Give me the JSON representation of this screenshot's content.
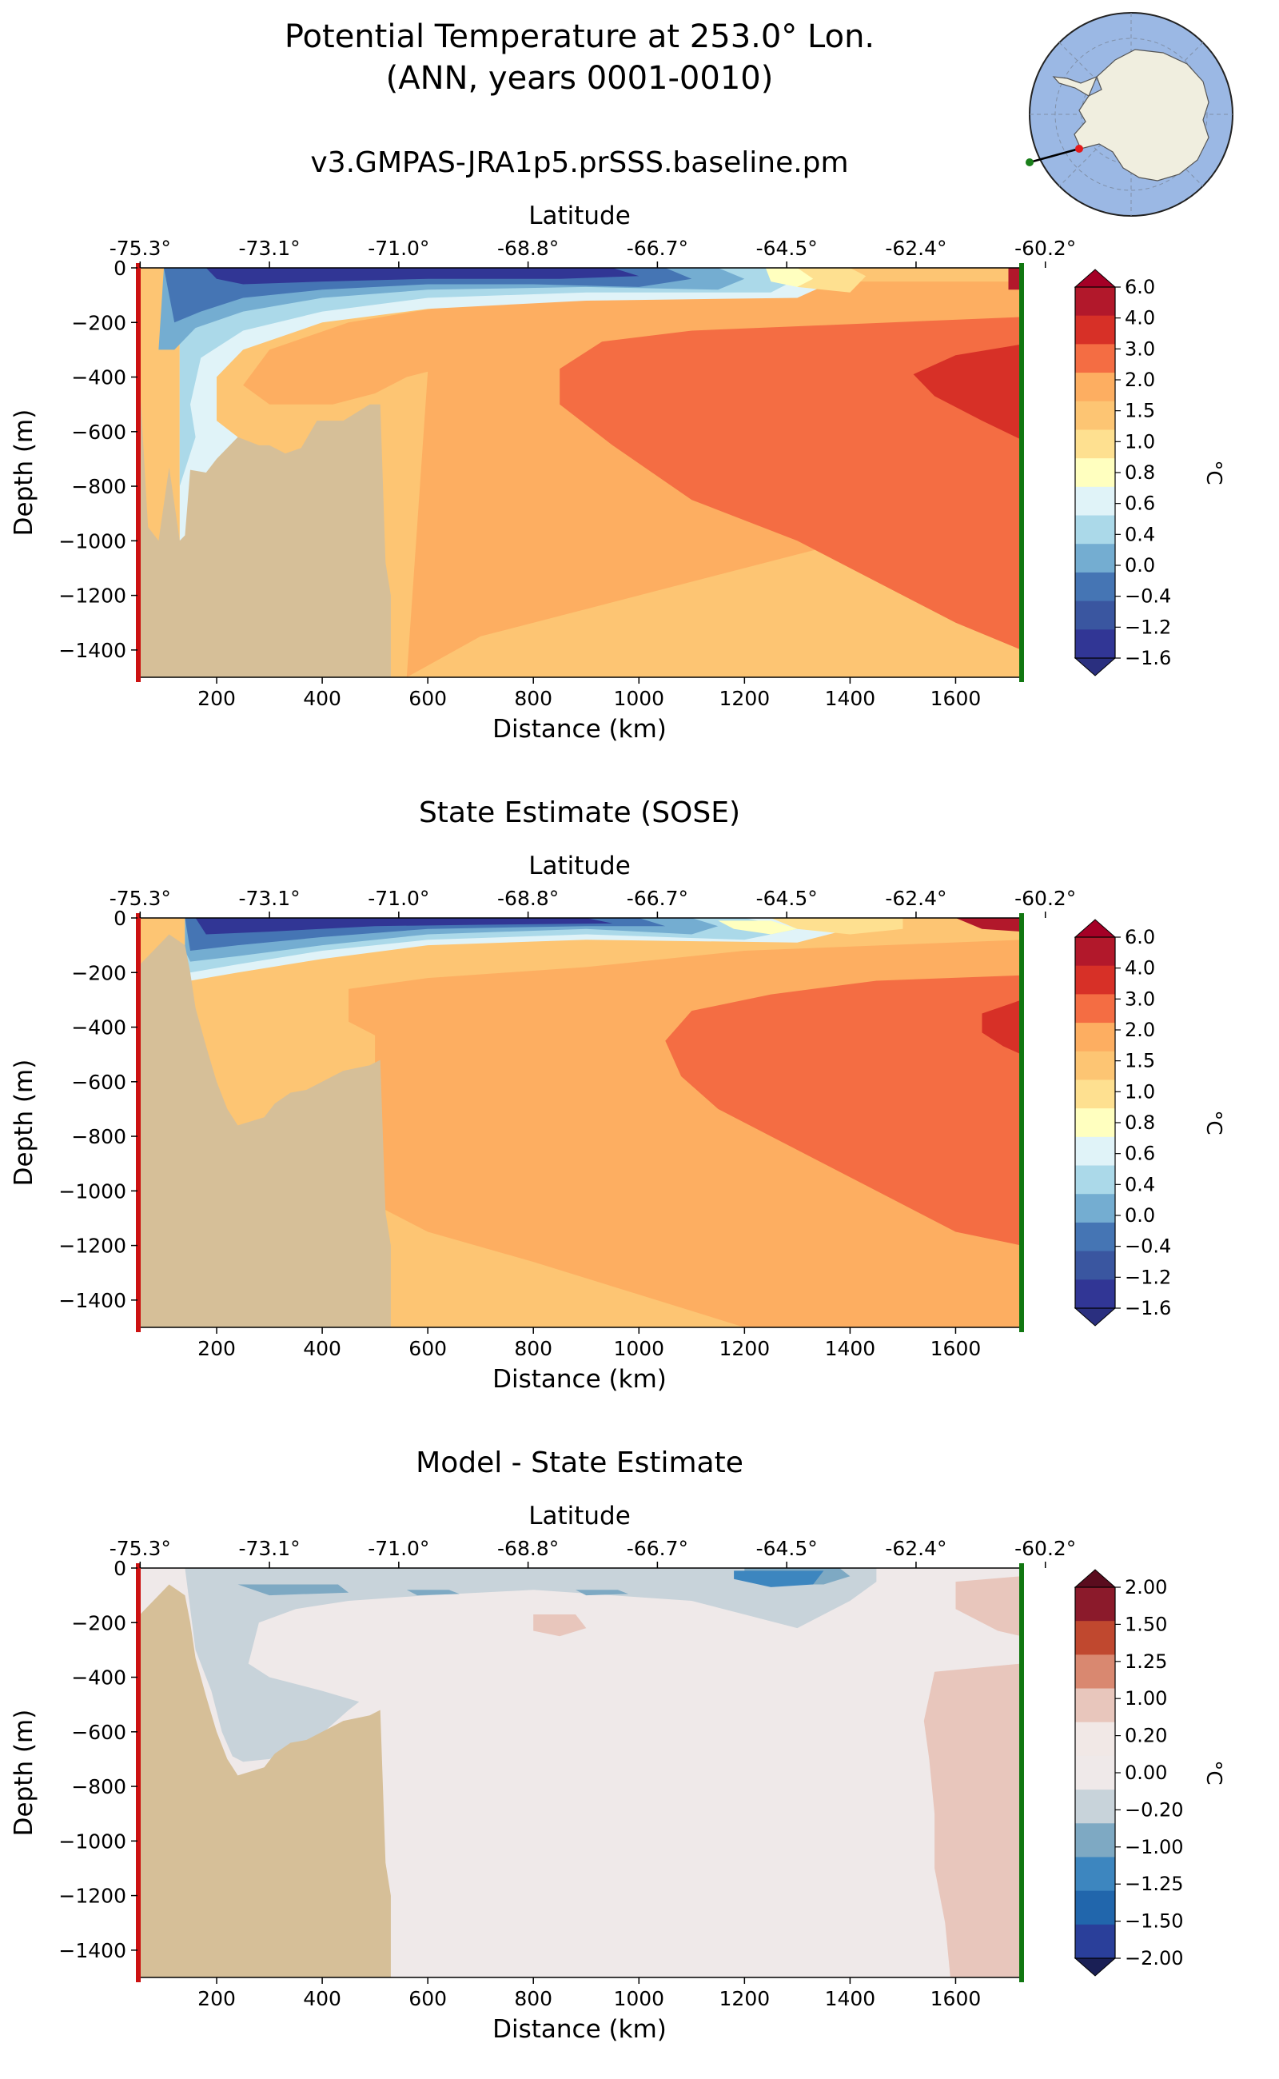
{
  "figure": {
    "title_line1": "Potential Temperature at 253.0° Lon.",
    "title_line2": "(ANN, years 0001-0010)"
  },
  "inset_map": {
    "description": "South polar stereographic map of Antarctica with section line",
    "section_start_color": "#1a7f1a",
    "section_end_color": "#e41a1c",
    "ocean_color": "#9bb8e4",
    "land_color": "#f0eedf"
  },
  "panel_colors": {
    "land": "#d6bf98",
    "left_edge": "#cc1111",
    "right_edge": "#117711"
  },
  "chart_data": [
    {
      "type": "contour",
      "title": "v3.GMPAS-JRA1p5.prSSS.baseline.pm",
      "xlabel": "Distance (km)",
      "ylabel": "Depth (m)",
      "top_axis_label": "Latitude",
      "xlim": [
        50,
        1725
      ],
      "ylim": [
        -1500,
        0
      ],
      "x_ticks": [
        200,
        400,
        600,
        800,
        1000,
        1200,
        1400,
        1600
      ],
      "x_tick_labels": [
        "200",
        "400",
        "600",
        "800",
        "1000",
        "1200",
        "1400",
        "1600"
      ],
      "y_ticks": [
        0,
        -200,
        -400,
        -600,
        -800,
        -1000,
        -1200,
        -1400
      ],
      "y_tick_labels": [
        "0",
        "−200",
        "−400",
        "−600",
        "−800",
        "−1000",
        "−1200",
        "−1400"
      ],
      "lat_ticks_km": [
        55,
        300,
        545,
        790,
        1035,
        1280,
        1525,
        1770
      ],
      "lat_tick_labels": [
        "-75.3°",
        "-73.1°",
        "-71.0°",
        "-68.8°",
        "-66.7°",
        "-64.5°",
        "-62.4°",
        "-60.2°"
      ],
      "colorbar": {
        "label": "°C",
        "levels": [
          "6.0",
          "4.0",
          "3.0",
          "2.0",
          "1.5",
          "1.0",
          "0.8",
          "0.6",
          "0.4",
          "0.0",
          "−0.4",
          "−1.2",
          "−1.6"
        ],
        "colors": [
          "#b2182b",
          "#d73027",
          "#f46d43",
          "#fdae61",
          "#fdc573",
          "#fee090",
          "#ffffbf",
          "#e0f3f8",
          "#abd9e9",
          "#74add1",
          "#4575b4",
          "#3a56a0",
          "#313695"
        ],
        "extend_over": "#a50026",
        "extend_under": "#2a2f7f"
      }
    },
    {
      "type": "contour",
      "title": "State Estimate (SOSE)",
      "xlabel": "Distance (km)",
      "ylabel": "Depth (m)",
      "top_axis_label": "Latitude",
      "xlim": [
        50,
        1725
      ],
      "ylim": [
        -1500,
        0
      ],
      "x_ticks": [
        200,
        400,
        600,
        800,
        1000,
        1200,
        1400,
        1600
      ],
      "x_tick_labels": [
        "200",
        "400",
        "600",
        "800",
        "1000",
        "1200",
        "1400",
        "1600"
      ],
      "y_ticks": [
        0,
        -200,
        -400,
        -600,
        -800,
        -1000,
        -1200,
        -1400
      ],
      "y_tick_labels": [
        "0",
        "−200",
        "−400",
        "−600",
        "−800",
        "−1000",
        "−1200",
        "−1400"
      ],
      "lat_ticks_km": [
        55,
        300,
        545,
        790,
        1035,
        1280,
        1525,
        1770
      ],
      "lat_tick_labels": [
        "-75.3°",
        "-73.1°",
        "-71.0°",
        "-68.8°",
        "-66.7°",
        "-64.5°",
        "-62.4°",
        "-60.2°"
      ],
      "colorbar": {
        "label": "°C",
        "levels": [
          "6.0",
          "4.0",
          "3.0",
          "2.0",
          "1.5",
          "1.0",
          "0.8",
          "0.6",
          "0.4",
          "0.0",
          "−0.4",
          "−1.2",
          "−1.6"
        ],
        "colors": [
          "#b2182b",
          "#d73027",
          "#f46d43",
          "#fdae61",
          "#fdc573",
          "#fee090",
          "#ffffbf",
          "#e0f3f8",
          "#abd9e9",
          "#74add1",
          "#4575b4",
          "#3a56a0",
          "#313695"
        ],
        "extend_over": "#a50026",
        "extend_under": "#2a2f7f"
      }
    },
    {
      "type": "contour",
      "title": "Model - State Estimate",
      "xlabel": "Distance (km)",
      "ylabel": "Depth (m)",
      "top_axis_label": "Latitude",
      "xlim": [
        50,
        1725
      ],
      "ylim": [
        -1500,
        0
      ],
      "x_ticks": [
        200,
        400,
        600,
        800,
        1000,
        1200,
        1400,
        1600
      ],
      "x_tick_labels": [
        "200",
        "400",
        "600",
        "800",
        "1000",
        "1200",
        "1400",
        "1600"
      ],
      "y_ticks": [
        0,
        -200,
        -400,
        -600,
        -800,
        -1000,
        -1200,
        -1400
      ],
      "y_tick_labels": [
        "0",
        "−200",
        "−400",
        "−600",
        "−800",
        "−1000",
        "−1200",
        "−1400"
      ],
      "lat_ticks_km": [
        55,
        300,
        545,
        790,
        1035,
        1280,
        1525,
        1770
      ],
      "lat_tick_labels": [
        "-75.3°",
        "-73.1°",
        "-71.0°",
        "-68.8°",
        "-66.7°",
        "-64.5°",
        "-62.4°",
        "-60.2°"
      ],
      "colorbar": {
        "label": "°C",
        "levels": [
          "2.00",
          "1.50",
          "1.25",
          "1.00",
          "0.20",
          "0.00",
          "−0.20",
          "−1.00",
          "−1.25",
          "−1.50",
          "−2.00"
        ],
        "colors": [
          "#8b1a2b",
          "#c0482f",
          "#d98870",
          "#e8c6bc",
          "#f1e8e6",
          "#efe9e9",
          "#c8d3da",
          "#7ea9c3",
          "#3d86bf",
          "#2166ac",
          "#2a3f9a"
        ],
        "extend_over": "#5a0c1e",
        "extend_under": "#1a1f55"
      }
    }
  ]
}
